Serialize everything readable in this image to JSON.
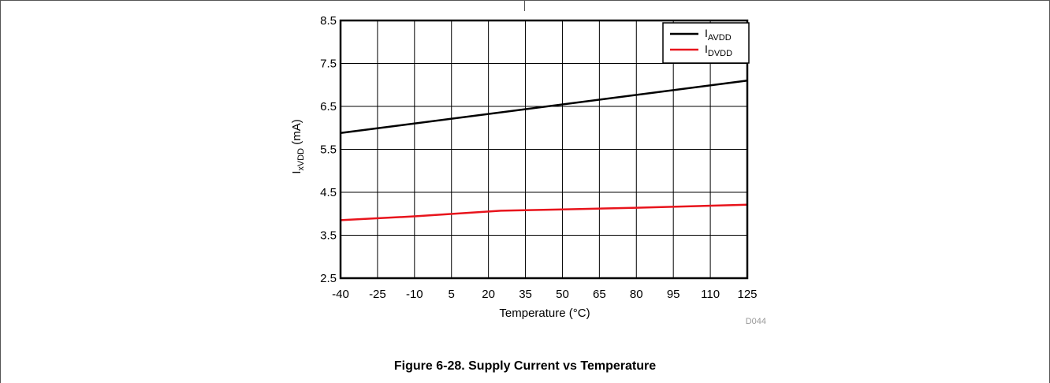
{
  "caption": "Figure 6-28. Supply Current vs Temperature",
  "figure_id": "D044",
  "chart_data": {
    "type": "line",
    "xlabel": "Temperature (°C)",
    "ylabel": "IxVDD (mA)",
    "x_ticks": [
      "-40",
      "-25",
      "-10",
      "5",
      "20",
      "35",
      "50",
      "65",
      "80",
      "95",
      "110",
      "125"
    ],
    "y_ticks": [
      "8.5",
      "7.5",
      "6.5",
      "5.5",
      "4.5",
      "3.5",
      "2.5"
    ],
    "xlim": [
      -40,
      125
    ],
    "ylim": [
      2.5,
      8.5
    ],
    "grid": true,
    "legend_position": "top-right",
    "series": [
      {
        "name": "IAVDD",
        "color": "#000000",
        "x": [
          -40,
          125
        ],
        "y": [
          5.88,
          7.1
        ]
      },
      {
        "name": "IDVDD",
        "color": "#e8141c",
        "x": [
          -40,
          -10,
          25,
          50,
          80,
          125
        ],
        "y": [
          3.85,
          3.94,
          4.07,
          4.1,
          4.14,
          4.21
        ]
      }
    ]
  }
}
